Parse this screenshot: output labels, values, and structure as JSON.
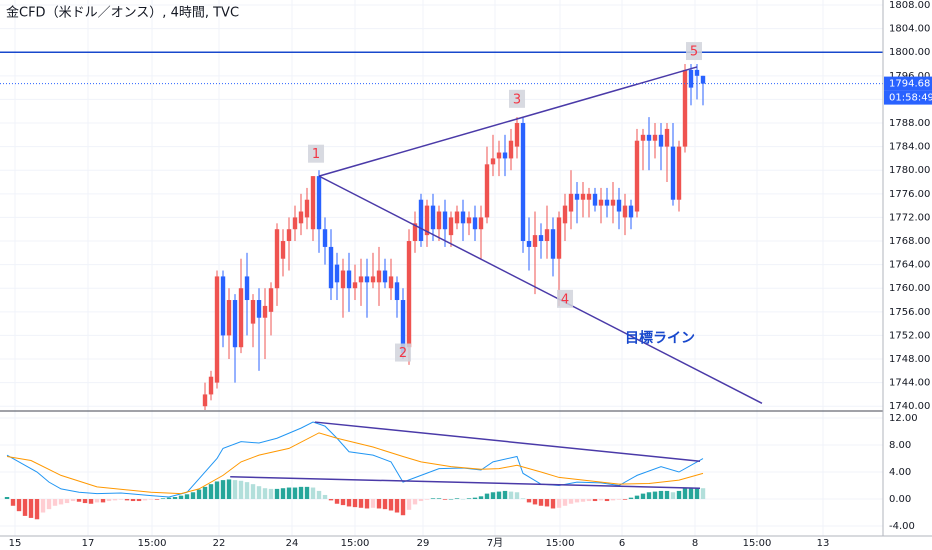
{
  "chart_data": [
    {
      "type": "candlestick",
      "title": "金CFD（米ドル／オンス）, 4時間, TVC",
      "x": [
        0,
        1,
        2,
        3,
        4,
        5,
        6,
        7,
        8,
        9,
        10,
        11,
        12,
        13,
        14,
        15,
        16,
        17,
        18,
        19,
        20,
        21,
        22,
        23,
        24,
        25,
        26,
        27,
        28,
        29,
        30,
        31,
        32,
        33,
        34,
        35,
        36,
        37,
        38,
        39,
        40,
        41,
        42,
        43,
        44,
        45,
        46,
        47,
        48,
        49,
        50,
        51,
        52,
        53,
        54,
        55,
        56,
        57,
        58,
        59,
        60,
        61,
        62,
        63,
        64,
        65,
        66,
        67,
        68,
        69,
        70,
        71,
        72,
        73,
        74,
        75,
        76,
        77,
        78,
        79,
        80,
        81,
        82,
        83
      ],
      "open": [
        1740,
        1742,
        1744,
        1762,
        1752,
        1758,
        1750,
        1762,
        1754,
        1758,
        1755,
        1756,
        1760,
        1765,
        1768,
        1770,
        1771,
        1772,
        1770,
        1779,
        1770,
        1767,
        1764,
        1760,
        1763,
        1760,
        1761,
        1762,
        1761,
        1761,
        1763,
        1760,
        1761,
        1758,
        1750,
        1768,
        1775,
        1769,
        1774,
        1770,
        1773,
        1769,
        1771,
        1773,
        1771,
        1772,
        1770,
        1772,
        1781,
        1782,
        1783,
        1782,
        1784,
        1788,
        1768,
        1767,
        1769,
        1768,
        1770,
        1765,
        1771,
        1773,
        1776,
        1775,
        1775,
        1776,
        1774,
        1775,
        1774,
        1775,
        1772,
        1774,
        1773,
        1785,
        1786,
        1785,
        1786,
        1784,
        1784,
        1775,
        1784,
        1797,
        1797,
        1796
      ],
      "high": [
        1744,
        1746,
        1763,
        1763,
        1760,
        1759,
        1765,
        1766,
        1759,
        1760,
        1760,
        1761,
        1771,
        1770,
        1772,
        1774,
        1776,
        1777,
        1779,
        1780,
        1772,
        1770,
        1766,
        1765,
        1766,
        1764,
        1765,
        1765,
        1766,
        1767,
        1765,
        1765,
        1762,
        1760,
        1770,
        1773,
        1776,
        1775,
        1776,
        1774,
        1775,
        1773,
        1774,
        1775,
        1773,
        1774,
        1774,
        1784,
        1786,
        1785,
        1786,
        1787,
        1789,
        1789,
        1772,
        1773,
        1771,
        1774,
        1772,
        1773,
        1776,
        1780,
        1778,
        1778,
        1777,
        1777,
        1777,
        1777,
        1778,
        1777,
        1776,
        1775,
        1787,
        1787,
        1789,
        1788,
        1788,
        1788,
        1788,
        1785,
        1798,
        1798,
        1798,
        1796
      ],
      "low": [
        1739,
        1741,
        1743,
        1750,
        1748,
        1744,
        1749,
        1752,
        1750,
        1746,
        1748,
        1752,
        1757,
        1762,
        1763,
        1768,
        1769,
        1770,
        1768,
        1766,
        1764,
        1758,
        1758,
        1755,
        1756,
        1758,
        1757,
        1755,
        1760,
        1757,
        1760,
        1758,
        1755,
        1748,
        1747,
        1766,
        1767,
        1767,
        1768,
        1768,
        1767,
        1767,
        1770,
        1768,
        1769,
        1768,
        1765,
        1771,
        1779,
        1779,
        1779,
        1780,
        1782,
        1766,
        1763,
        1759,
        1765,
        1765,
        1762,
        1757,
        1768,
        1770,
        1771,
        1772,
        1772,
        1773,
        1771,
        1772,
        1771,
        1770,
        1769,
        1770,
        1772,
        1780,
        1780,
        1782,
        1780,
        1778,
        1774,
        1773,
        1783,
        1791,
        1792,
        1791
      ],
      "close": [
        1742,
        1745,
        1762,
        1752,
        1758,
        1750,
        1760,
        1758,
        1758,
        1755,
        1757,
        1760,
        1770,
        1768,
        1770,
        1772,
        1773,
        1775,
        1779,
        1770,
        1767,
        1760,
        1761,
        1763,
        1760,
        1761,
        1762,
        1761,
        1762,
        1763,
        1761,
        1762,
        1758,
        1749,
        1768,
        1771,
        1768,
        1774,
        1770,
        1773,
        1770,
        1772,
        1773,
        1771,
        1772,
        1770,
        1772,
        1781,
        1782,
        1783,
        1782,
        1785,
        1788,
        1768,
        1767,
        1769,
        1768,
        1770,
        1765,
        1772,
        1774,
        1776,
        1775,
        1776,
        1776,
        1774,
        1775,
        1774,
        1775,
        1773,
        1774,
        1772,
        1785,
        1786,
        1785,
        1786,
        1784,
        1787,
        1775,
        1784,
        1797,
        1794,
        1796,
        1794.68
      ],
      "up_color": "#ef5350",
      "down_color": "#2962ff",
      "xlim": [
        -34.17,
        113
      ],
      "ylim": [
        1739.36,
        1808.85
      ],
      "yticks": [
        {
          "value": 1740,
          "label": "1740.00"
        },
        {
          "value": 1744,
          "label": "1744.00"
        },
        {
          "value": 1748,
          "label": "1748.00"
        },
        {
          "value": 1752,
          "label": "1752.00"
        },
        {
          "value": 1756,
          "label": "1756.00"
        },
        {
          "value": 1760,
          "label": "1760.00"
        },
        {
          "value": 1764,
          "label": "1764.00"
        },
        {
          "value": 1768,
          "label": "1768.00"
        },
        {
          "value": 1772,
          "label": "1772.00"
        },
        {
          "value": 1776,
          "label": "1776.00"
        },
        {
          "value": 1780,
          "label": "1780.00"
        },
        {
          "value": 1784,
          "label": "1784.00"
        },
        {
          "value": 1788,
          "label": "1788.00"
        },
        {
          "value": 1792,
          "label": "1792.00"
        },
        {
          "value": 1796,
          "label": "1796.00"
        },
        {
          "value": 1800,
          "label": "1800.00"
        },
        {
          "value": 1804,
          "label": "1804.00"
        },
        {
          "value": 1808,
          "label": "1808.00"
        }
      ],
      "xticks": [
        {
          "value": -31.67,
          "label": "15"
        },
        {
          "value": -19.5,
          "label": "17"
        },
        {
          "value": -8.83,
          "label": "15:00"
        },
        {
          "value": 2.33,
          "label": "22"
        },
        {
          "value": 14.5,
          "label": "24"
        },
        {
          "value": 25,
          "label": "15:00"
        },
        {
          "value": 36.33,
          "label": "29"
        },
        {
          "value": 48.33,
          "label": "7月"
        },
        {
          "value": 59.17,
          "label": "15:00"
        },
        {
          "value": 69.5,
          "label": "6"
        },
        {
          "value": 81.67,
          "label": "8"
        },
        {
          "value": 92,
          "label": "15:00"
        },
        {
          "value": 103,
          "label": "13"
        }
      ],
      "grid": true,
      "hline": 1800,
      "hline_color": "#1848cc",
      "last_price": 1794.68,
      "last_price_color": "#2962ff",
      "countdown": "01:58:49",
      "trendline_color": "#4a3aa8",
      "trendlines": [
        {
          "x": [
            19,
            82
          ],
          "y": [
            1779,
            1797.5
          ]
        },
        {
          "x": [
            19,
            92.83
          ],
          "y": [
            1779,
            1740.5
          ]
        }
      ],
      "annotations": [
        {
          "text": "1",
          "x": 18.5,
          "y": 1782.8
        },
        {
          "text": "2",
          "x": 33,
          "y": 1749.1
        },
        {
          "text": "3",
          "x": 52,
          "y": 1792.1
        },
        {
          "text": "4",
          "x": 60,
          "y": 1758.2
        },
        {
          "text": "5",
          "x": 81.5,
          "y": 1800.2
        }
      ],
      "note": {
        "text": "目標ライン",
        "x": 70,
        "y": 1751.5,
        "color": "#1848cc"
      }
    },
    {
      "type": "macd",
      "xlim": [
        -34.17,
        113
      ],
      "ylim": [
        -5.33,
        12.89
      ],
      "yticks": [
        {
          "value": -4,
          "label": "-4.00"
        },
        {
          "value": 0,
          "label": "0.00"
        },
        {
          "value": 4,
          "label": "4.00"
        },
        {
          "value": 8,
          "label": "8.00"
        },
        {
          "value": 12,
          "label": "12.00"
        }
      ],
      "grid": true,
      "histogram": {
        "x": [
          -33,
          -32,
          -31,
          -30,
          -29,
          -28,
          -27,
          -26,
          -25,
          -24,
          -23,
          -22,
          -21,
          -20,
          -19,
          -18,
          -17,
          -16,
          -15,
          -14,
          -13,
          -12,
          -11,
          -10,
          -9,
          -8,
          -7,
          -6,
          -5,
          -4,
          -3,
          -2,
          -1,
          0,
          1,
          2,
          3,
          4,
          5,
          6,
          7,
          8,
          9,
          10,
          11,
          12,
          13,
          14,
          15,
          16,
          17,
          18,
          19,
          20,
          21,
          22,
          23,
          24,
          25,
          26,
          27,
          28,
          29,
          30,
          31,
          32,
          33,
          34,
          35,
          36,
          37,
          38,
          39,
          40,
          41,
          42,
          43,
          44,
          45,
          46,
          47,
          48,
          49,
          50,
          51,
          52,
          53,
          54,
          55,
          56,
          57,
          58,
          59,
          60,
          61,
          62,
          63,
          64,
          65,
          66,
          67,
          68,
          69,
          70,
          71,
          72,
          73,
          74,
          75,
          76,
          77,
          78,
          79,
          80,
          81,
          82,
          83
        ],
        "values": [
          0.3,
          -1,
          -1.8,
          -2.5,
          -2.8,
          -3,
          -2,
          -1.5,
          -1,
          -0.8,
          -0.6,
          -0.3,
          -0.4,
          -0.6,
          -0.7,
          -0.5,
          -0.5,
          -0.3,
          -0.2,
          -0.1,
          -0.2,
          -0.3,
          -0.3,
          -0.2,
          -0.1,
          -0.1,
          0.1,
          0.2,
          0.3,
          0.5,
          0.7,
          1.0,
          1.4,
          1.8,
          2.2,
          2.6,
          2.8,
          2.9,
          2.8,
          2.7,
          2.5,
          2.2,
          1.9,
          1.6,
          1.5,
          1.5,
          1.6,
          1.7,
          1.7,
          1.8,
          1.8,
          1.7,
          1.2,
          0.6,
          -0.2,
          -0.7,
          -0.9,
          -1.1,
          -1.2,
          -1.3,
          -1.4,
          -1.3,
          -1.4,
          -1.5,
          -1.7,
          -2.0,
          -2.4,
          -1.6,
          -0.8,
          -0.3,
          -0.1,
          0.1,
          0.1,
          -0.1,
          0,
          0.1,
          0,
          0.1,
          0.2,
          0.4,
          0.8,
          1.0,
          1.1,
          1.2,
          1.1,
          1.0,
          0.1,
          -0.5,
          -0.8,
          -1.0,
          -1.1,
          -1.4,
          -1.3,
          -1.0,
          -0.7,
          -0.5,
          -0.4,
          -0.3,
          -0.3,
          -0.2,
          -0.3,
          -0.2,
          -0.1,
          -0.1,
          0.2,
          0.5,
          0.8,
          1.0,
          1.1,
          1.2,
          1.2,
          1.0,
          1.2,
          1.6,
          1.7,
          1.7,
          1.6
        ],
        "colors": {
          "positive_rising": "#26a69a",
          "positive_falling": "#b2dfdb",
          "negative_falling": "#ef5350",
          "negative_rising": "#ffcdd2"
        }
      },
      "lines": [
        {
          "color": "#2196f3",
          "x": [
            -33,
            -31,
            -28,
            -26,
            -24,
            -21,
            -18,
            -14,
            -9,
            -6,
            -3,
            -1,
            2,
            3,
            6,
            9,
            12,
            16,
            18,
            20,
            22,
            24,
            28,
            31,
            33,
            36,
            39,
            43,
            46,
            48,
            52,
            53,
            56,
            59,
            62,
            66,
            69,
            72,
            76,
            79,
            83
          ],
          "values": [
            6.5,
            5.5,
            4,
            2.5,
            1.5,
            1.0,
            0.8,
            0.9,
            0.5,
            0.3,
            1.0,
            3,
            6,
            7.5,
            8.5,
            8.3,
            9,
            10.5,
            11.4,
            10.8,
            9,
            7,
            6.5,
            5.5,
            2.5,
            3.5,
            4.5,
            4.6,
            4.3,
            5.5,
            6.3,
            3.8,
            2.2,
            2.0,
            2.5,
            2.4,
            2.0,
            3.5,
            4.8,
            4.0,
            6.0
          ]
        },
        {
          "color": "#ff9800",
          "x": [
            -33,
            -29,
            -24,
            -18,
            -9,
            -4,
            -1,
            3,
            6,
            9,
            14,
            19,
            22,
            28,
            33,
            36,
            41,
            46,
            49,
            52,
            56,
            59,
            64,
            69,
            74,
            79,
            83
          ],
          "values": [
            6.3,
            5.7,
            3.5,
            1.8,
            1.0,
            0.8,
            1.5,
            3.5,
            5.5,
            6.5,
            7.5,
            9.8,
            9.0,
            7.7,
            6.3,
            5.5,
            4.8,
            4.4,
            4.5,
            5.0,
            4.0,
            3.2,
            2.7,
            2.2,
            2.3,
            2.8,
            3.8
          ]
        }
      ],
      "trendline_color": "#4a3aa8",
      "trendlines": [
        {
          "x": [
            18.3,
            82.5
          ],
          "y": [
            11.4,
            5.6
          ]
        },
        {
          "x": [
            4.2,
            82.5
          ],
          "y": [
            3.3,
            1.6
          ]
        }
      ]
    }
  ]
}
